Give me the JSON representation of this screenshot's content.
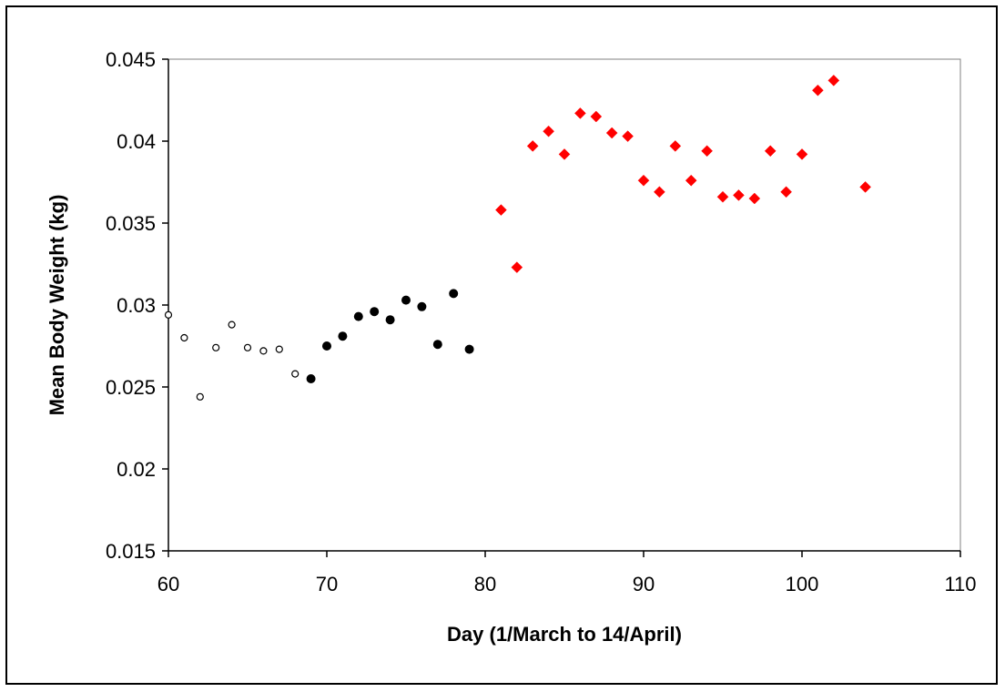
{
  "chart_data": {
    "type": "scatter",
    "title": "",
    "xlabel": "Day (1/March to 14/April)",
    "ylabel": "Mean Body Weight (kg)",
    "xlim": [
      60,
      110
    ],
    "ylim": [
      0.015,
      0.045
    ],
    "xticks": [
      60,
      70,
      80,
      90,
      100,
      110
    ],
    "xtick_labels": [
      "60",
      "70",
      "80",
      "90",
      "100",
      "110"
    ],
    "yticks": [
      0.015,
      0.02,
      0.025,
      0.03,
      0.035,
      0.04,
      0.045
    ],
    "ytick_labels": [
      "0.015",
      "0.02",
      "0.025",
      "0.03",
      "0.035",
      "0.04",
      "0.045"
    ],
    "grid": false,
    "legend": "none",
    "series": [
      {
        "marker": "open-circle",
        "color": "#000000",
        "x": [
          60,
          61,
          62,
          63,
          64,
          65,
          66,
          67,
          68
        ],
        "y": [
          0.0294,
          0.028,
          0.0244,
          0.0274,
          0.0288,
          0.0274,
          0.0272,
          0.0273,
          0.0258
        ]
      },
      {
        "marker": "filled-circle",
        "color": "#000000",
        "x": [
          69,
          70,
          71,
          72,
          73,
          74,
          75,
          76,
          77,
          78,
          79
        ],
        "y": [
          0.0255,
          0.0275,
          0.0281,
          0.0293,
          0.0296,
          0.0291,
          0.0303,
          0.0299,
          0.0276,
          0.0307,
          0.0273
        ]
      },
      {
        "marker": "diamond",
        "color": "#ff0000",
        "x": [
          81,
          82,
          83,
          84,
          85,
          86,
          87,
          88,
          89,
          90,
          91,
          92,
          93,
          94,
          95,
          96,
          97,
          98,
          99,
          100,
          101,
          102,
          104
        ],
        "y": [
          0.0358,
          0.0323,
          0.0397,
          0.0406,
          0.0392,
          0.0417,
          0.0415,
          0.0405,
          0.0403,
          0.0376,
          0.0369,
          0.0397,
          0.0376,
          0.0394,
          0.0366,
          0.0367,
          0.0365,
          0.0394,
          0.0369,
          0.0392,
          0.0431,
          0.0437,
          0.0372
        ]
      }
    ]
  }
}
